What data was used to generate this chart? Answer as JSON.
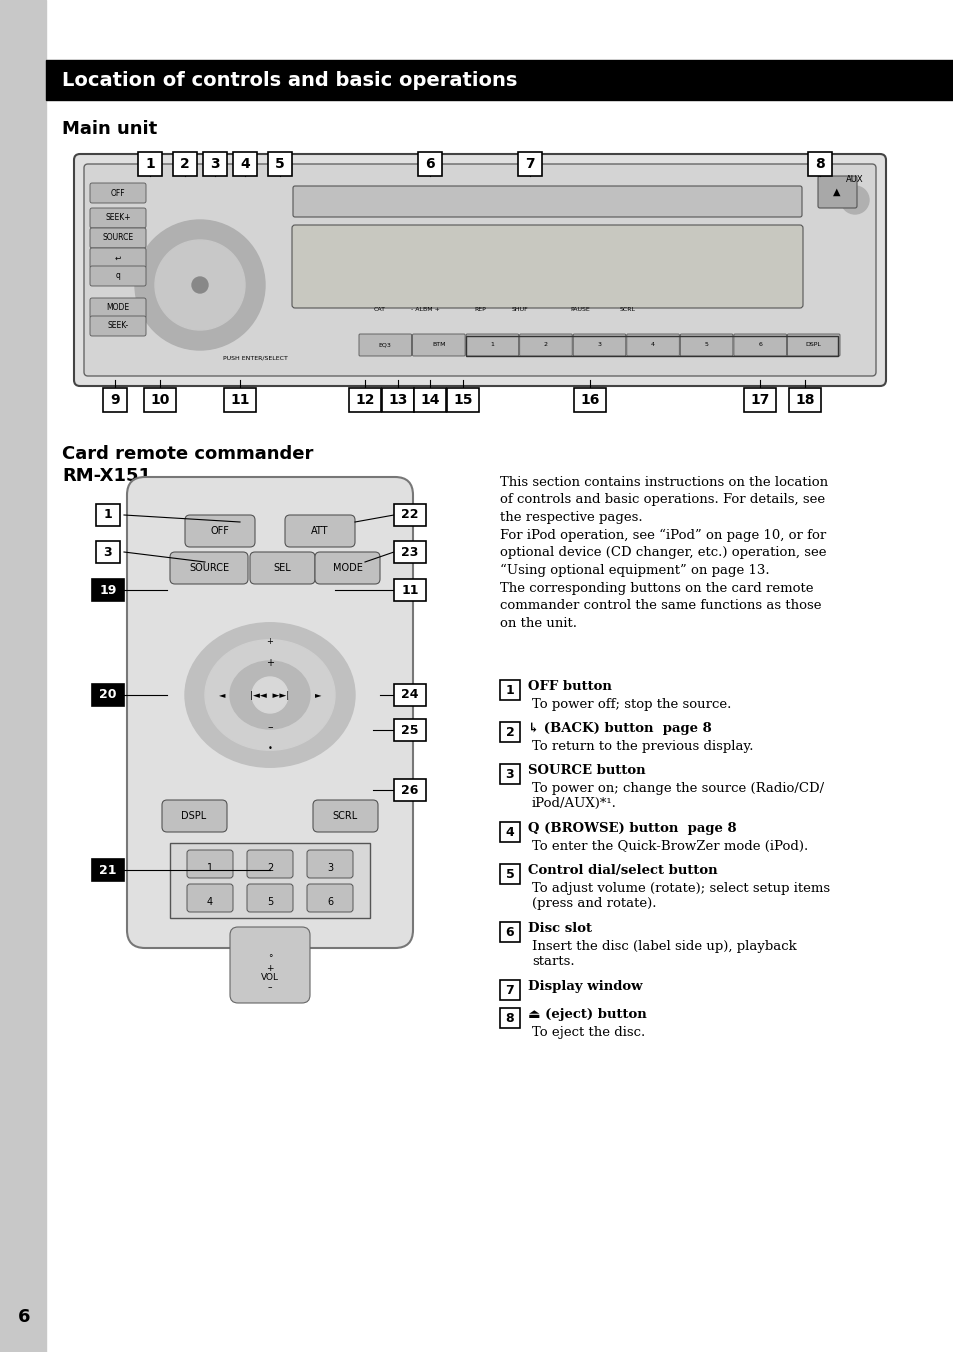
{
  "title_bar_text": "Location of controls and basic operations",
  "title_bar_bg": "#000000",
  "title_bar_text_color": "#ffffff",
  "main_unit_label": "Main unit",
  "card_remote_label": "Card remote commander",
  "card_remote_label2": "RM-X151",
  "page_number": "6",
  "bg_color": "#ffffff",
  "sidebar_color": "#c8c8c8",
  "description_text": "This section contains instructions on the location\nof controls and basic operations. For details, see\nthe respective pages.\nFor iPod operation, see “iPod” on page 10, or for\noptional device (CD changer, etc.) operation, see\n“Using optional equipment” on page 13.\nThe corresponding buttons on the card remote\ncommander control the same functions as those\non the unit.",
  "items": [
    {
      "num": "1",
      "text": "OFF button",
      "desc": "To power off; stop the source.",
      "extra": null
    },
    {
      "num": "2",
      "text": "↳ (BACK) button  page 8",
      "desc": "To return to the previous display.",
      "extra": null
    },
    {
      "num": "3",
      "text": "SOURCE button",
      "desc": "To power on; change the source (Radio/CD/\niPod/AUX)*¹.",
      "extra": null
    },
    {
      "num": "4",
      "text": "Q (BROWSE) button  page 8",
      "desc": "To enter the Quick-BrowZer mode (iPod).",
      "extra": null
    },
    {
      "num": "5",
      "text": "Control dial/select button",
      "desc": "To adjust volume (rotate); select setup items\n(press and rotate).",
      "extra": null
    },
    {
      "num": "6",
      "text": "Disc slot",
      "desc": "Insert the disc (label side up), playback\nstarts.",
      "extra": null
    },
    {
      "num": "7",
      "text": "Display window",
      "desc": null,
      "extra": null
    },
    {
      "num": "8",
      "text": "⏏ (eject) button",
      "desc": "To eject the disc.",
      "extra": null
    }
  ],
  "top_labels": [
    [
      "1",
      150
    ],
    [
      "2",
      185
    ],
    [
      "3",
      215
    ],
    [
      "4",
      245
    ],
    [
      "5",
      280
    ],
    [
      "6",
      430
    ],
    [
      "7",
      530
    ],
    [
      "8",
      820
    ]
  ],
  "bot_labels": [
    [
      "9",
      115
    ],
    [
      "10",
      160
    ],
    [
      "11",
      240
    ],
    [
      "12",
      365
    ],
    [
      "13",
      398
    ],
    [
      "14",
      430
    ],
    [
      "15",
      463
    ],
    [
      "16",
      590
    ],
    [
      "17",
      760
    ],
    [
      "18",
      805
    ]
  ]
}
